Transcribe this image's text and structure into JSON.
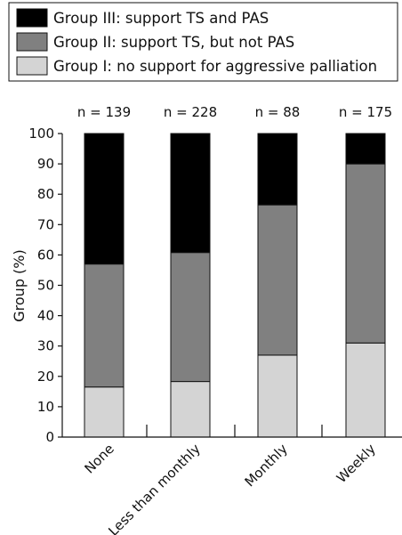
{
  "chart_data": {
    "type": "bar",
    "stacked": true,
    "title": "",
    "xlabel": "",
    "ylabel": "Group (%)",
    "ylim": [
      0,
      100
    ],
    "yticks": [
      0,
      10,
      20,
      30,
      40,
      50,
      60,
      70,
      80,
      90,
      100
    ],
    "categories": [
      "None",
      "Less than monthly",
      "Monthly",
      "Weekly"
    ],
    "n_labels": [
      "n = 139",
      "n = 228",
      "n = 88",
      "n = 175"
    ],
    "legend_position": "top",
    "series": [
      {
        "name": "Group I: no support for aggressive palliation",
        "color": "#d4d4d4",
        "values": [
          16.5,
          18.3,
          27,
          31
        ]
      },
      {
        "name": "Group II: support TS, but not PAS",
        "color": "#808080",
        "values": [
          40.5,
          42.5,
          49.5,
          59
        ]
      },
      {
        "name": "Group III: support TS and PAS",
        "color": "#000000",
        "values": [
          43,
          39.2,
          23.5,
          10
        ]
      }
    ]
  }
}
